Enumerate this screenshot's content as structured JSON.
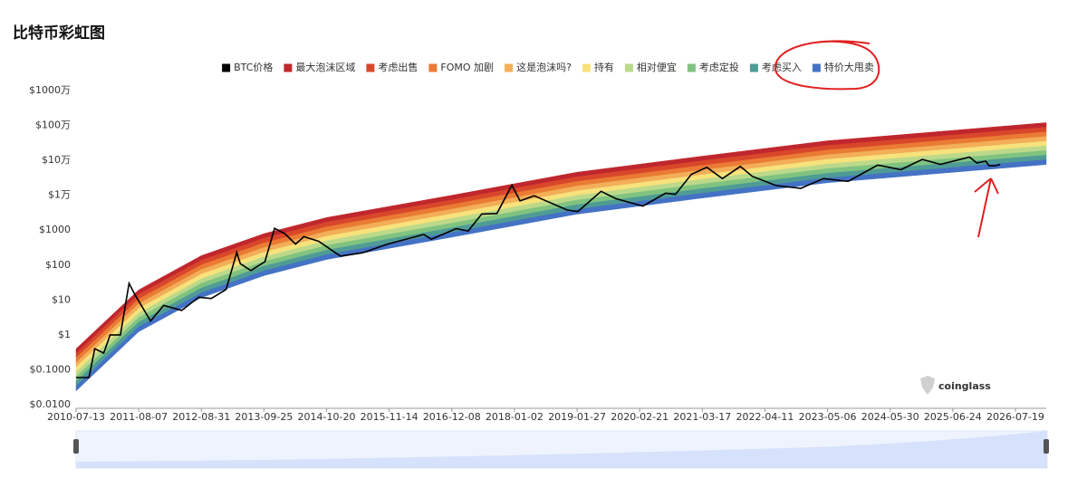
{
  "chart_data": {
    "type": "line",
    "title": "比特币彩虹图",
    "watermark": "coinglass",
    "log_y": true,
    "grid": false,
    "xlim": [
      "2010-07-13",
      "2027-01-27"
    ],
    "xticks": [
      "2010-07-13",
      "2011-08-07",
      "2012-08-31",
      "2013-09-25",
      "2014-10-20",
      "2015-11-14",
      "2016-12-08",
      "2018-01-02",
      "2019-01-27",
      "2020-02-21",
      "2021-03-17",
      "2022-04-11",
      "2023-05-06",
      "2024-05-30",
      "2025-06-24",
      "2026-07-19"
    ],
    "ylim": [
      0.01,
      10000000
    ],
    "yticks": [
      {
        "value": 0.01,
        "label": "$0.0100"
      },
      {
        "value": 0.1,
        "label": "$0.1000"
      },
      {
        "value": 1,
        "label": "$1"
      },
      {
        "value": 10,
        "label": "$10"
      },
      {
        "value": 100,
        "label": "$100"
      },
      {
        "value": 1000,
        "label": "$1000"
      },
      {
        "value": 10000,
        "label": "$1万"
      },
      {
        "value": 100000,
        "label": "$10万"
      },
      {
        "value": 1000000,
        "label": "$100万"
      },
      {
        "value": 10000000,
        "label": "$1000万"
      }
    ],
    "x": [
      "2010-07-13",
      "2011-08-07",
      "2012-08-31",
      "2013-09-25",
      "2014-10-20",
      "2016-12-08",
      "2019-01-27",
      "2021-03-17",
      "2023-05-06",
      "2027-01-27"
    ],
    "series": [
      {
        "name": "BTC价格",
        "color": "#000000",
        "x": [
          "2010-07-13",
          "2010-10-01",
          "2010-11-06",
          "2011-01-01",
          "2011-02-10",
          "2011-04-15",
          "2011-06-08",
          "2011-07-15",
          "2011-10-20",
          "2012-01-10",
          "2012-05-01",
          "2012-08-15",
          "2012-11-01",
          "2013-02-01",
          "2013-04-09",
          "2013-05-01",
          "2013-07-05",
          "2013-10-01",
          "2013-11-30",
          "2014-02-01",
          "2014-04-10",
          "2014-06-01",
          "2014-09-01",
          "2015-01-14",
          "2015-06-01",
          "2015-11-04",
          "2016-06-17",
          "2016-08-02",
          "2017-01-04",
          "2017-03-20",
          "2017-06-12",
          "2017-09-15",
          "2017-12-17",
          "2018-02-06",
          "2018-05-05",
          "2018-11-25",
          "2019-02-01",
          "2019-06-26",
          "2019-09-25",
          "2020-03-12",
          "2020-08-01",
          "2020-10-01",
          "2021-01-08",
          "2021-04-14",
          "2021-07-20",
          "2021-11-09",
          "2022-01-22",
          "2022-06-18",
          "2022-11-21",
          "2023-04-10",
          "2023-09-11",
          "2024-03-13",
          "2024-08-05",
          "2024-12-16",
          "2025-04-08",
          "2025-10-06",
          "2025-11-21",
          "2026-01-15",
          "2026-02-05",
          "2026-03-15",
          "2026-04-15"
        ],
        "values": [
          0.06,
          0.06,
          0.4,
          0.3,
          1.0,
          1.0,
          30,
          14,
          2.5,
          7,
          5,
          12,
          11,
          20,
          230,
          110,
          70,
          125,
          1130,
          800,
          400,
          650,
          480,
          180,
          225,
          400,
          750,
          550,
          1100,
          950,
          2900,
          3000,
          19500,
          6900,
          9700,
          3800,
          3400,
          13000,
          8000,
          4900,
          11500,
          10600,
          40000,
          63000,
          30000,
          67000,
          35000,
          19000,
          15800,
          30000,
          25000,
          73000,
          54000,
          106000,
          77000,
          124000,
          84000,
          95000,
          70000,
          70000,
          76000
        ]
      },
      {
        "name": "最大泡沫区域",
        "color": "#c0272d",
        "values": [
          0.4,
          19.5,
          186,
          794,
          2290,
          10000,
          45700,
          132000,
          363000,
          1200000
        ]
      },
      {
        "name": "考虑出售",
        "color": "#d9472b",
        "values": [
          0.29,
          14.4,
          137,
          584,
          1690,
          7360,
          33600,
          97000,
          267000,
          885000
        ]
      },
      {
        "name": "FOMO 加剧",
        "color": "#ea7b34",
        "values": [
          0.22,
          10.6,
          101,
          430,
          1240,
          5420,
          24800,
          71400,
          197000,
          651000
        ]
      },
      {
        "name": "这是泡沫吗?",
        "color": "#f3ae58",
        "values": [
          0.16,
          7.8,
          74,
          317,
          914,
          3990,
          18200,
          52600,
          145000,
          480000
        ]
      },
      {
        "name": "持有",
        "color": "#f7e27c",
        "values": [
          0.12,
          5.7,
          55,
          233,
          673,
          2940,
          13400,
          38700,
          107000,
          353000
        ]
      },
      {
        "name": "相对便宜",
        "color": "#bcd98a",
        "values": [
          0.086,
          4.2,
          40,
          172,
          495,
          2160,
          9870,
          28500,
          78400,
          260000
        ]
      },
      {
        "name": "考虑定投",
        "color": "#80c380",
        "values": [
          0.063,
          3.1,
          30,
          126,
          364,
          1590,
          7270,
          21000,
          57700,
          191000
        ]
      },
      {
        "name": "考虑买入",
        "color": "#4f9b95",
        "values": [
          0.047,
          2.3,
          22,
          93,
          268,
          1170,
          5350,
          15400,
          42500,
          141000
        ]
      },
      {
        "name": "特价大甩卖",
        "color": "#4472c4",
        "values": [
          0.034,
          1.7,
          16,
          68,
          197,
          862,
          3940,
          11400,
          31300,
          104000
        ],
        "low": [
          0.025,
          1.23,
          11.7,
          50,
          145,
          631,
          2880,
          8320,
          22900,
          75900
        ]
      }
    ]
  }
}
